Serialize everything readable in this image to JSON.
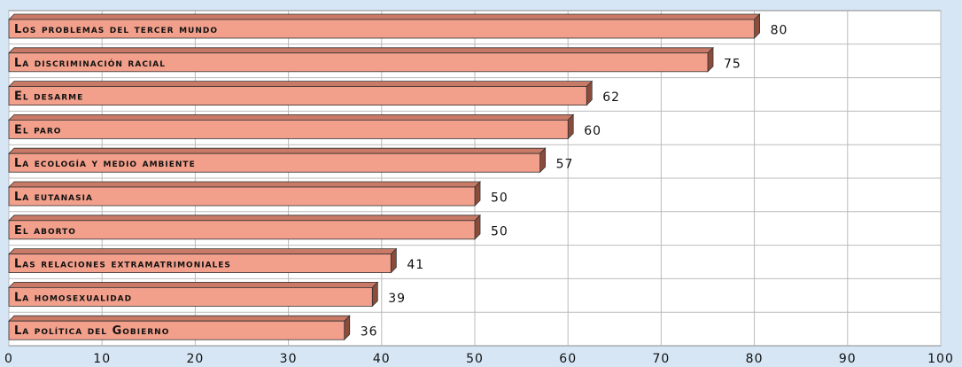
{
  "chart_data": {
    "type": "bar",
    "orientation": "horizontal",
    "categories": [
      "Los problemas del tercer mundo",
      "La discriminación racial",
      "El desarme",
      "El paro",
      "La ecología y medio ambiente",
      "La eutanasia",
      "El aborto",
      "Las relaciones extramatrimoniales",
      "La homosexualidad",
      "La política del Gobierno"
    ],
    "values": [
      80,
      75,
      62,
      60,
      57,
      50,
      50,
      41,
      39,
      36
    ],
    "color": "#f2a08c",
    "xlim": [
      0,
      100
    ],
    "xticks": [
      0,
      10,
      20,
      30,
      40,
      50,
      60,
      70,
      80,
      90,
      100
    ],
    "grid": true
  }
}
